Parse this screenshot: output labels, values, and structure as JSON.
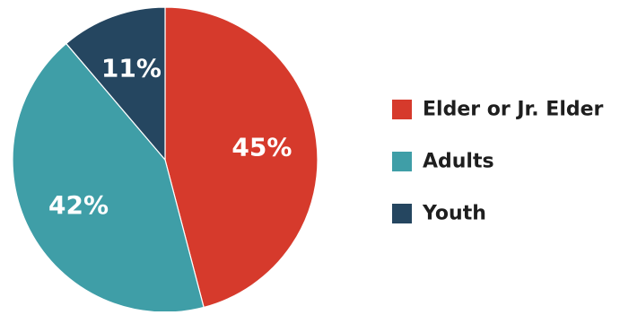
{
  "chart_data": {
    "type": "pie",
    "title": "",
    "slices": [
      {
        "name": "Elder or Jr. Elder",
        "value": 45,
        "label": "45%",
        "color": "#d63a2c"
      },
      {
        "name": "Adults",
        "value": 42,
        "label": "42%",
        "color": "#3f9ea7"
      },
      {
        "name": "Youth",
        "value": 11,
        "label": "11%",
        "color": "#254660"
      }
    ],
    "start_angle_deg": 0,
    "direction": "clockwise",
    "legend_position": "right"
  }
}
